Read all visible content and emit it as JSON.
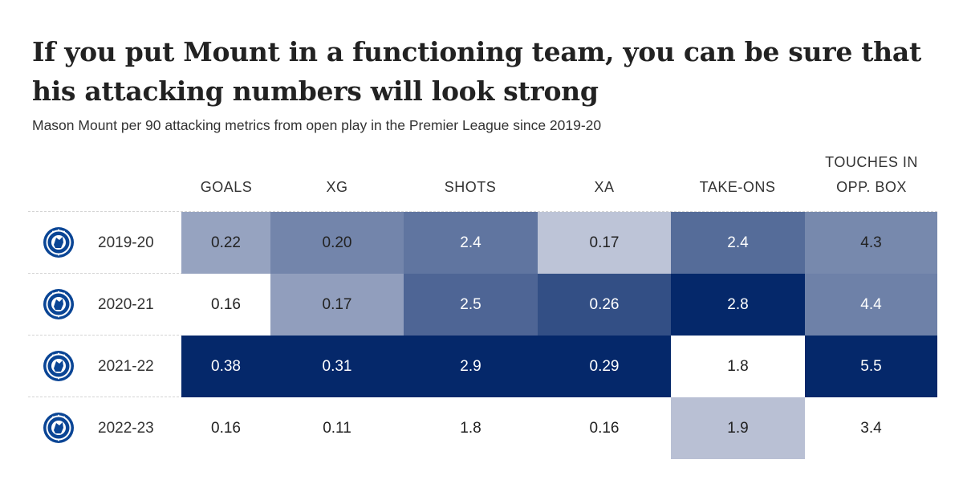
{
  "header": {
    "title": "If you put Mount in a functioning team, you can be sure that his attacking numbers will look strong",
    "subtitle": "Mason Mount per 90 attacking metrics from open play in the Premier League since 2019-20"
  },
  "colors": {
    "dark_navy": "#05286a",
    "light_tint": "#e8e8f0",
    "text_dark": "#222222",
    "text_light": "#ffffff"
  },
  "chart_data": {
    "type": "table",
    "title": "If you put Mount in a functioning team, you can be sure that his attacking numbers will look strong",
    "subtitle": "Mason Mount per 90 attacking metrics from open play in the Premier League since 2019-20",
    "columns": [
      "GOALS",
      "XG",
      "SHOTS",
      "XA",
      "TAKE-ONS",
      "TOUCHES IN\nOPP. BOX"
    ],
    "rows": [
      {
        "season": "2019-20",
        "team_icon": "chelsea-crest-icon",
        "values": [
          "0.22",
          "0.20",
          "2.4",
          "0.17",
          "2.4",
          "4.3"
        ]
      },
      {
        "season": "2020-21",
        "team_icon": "chelsea-crest-icon",
        "values": [
          "0.16",
          "0.17",
          "2.5",
          "0.26",
          "2.8",
          "4.4"
        ]
      },
      {
        "season": "2021-22",
        "team_icon": "chelsea-crest-icon",
        "values": [
          "0.38",
          "0.31",
          "2.9",
          "0.29",
          "1.8",
          "5.5"
        ]
      },
      {
        "season": "2022-23",
        "team_icon": "chelsea-crest-icon",
        "values": [
          "0.16",
          "0.11",
          "1.8",
          "0.16",
          "1.9",
          "3.4"
        ]
      }
    ],
    "color_scale": "per-column heatmap: higher value = darker navy"
  }
}
